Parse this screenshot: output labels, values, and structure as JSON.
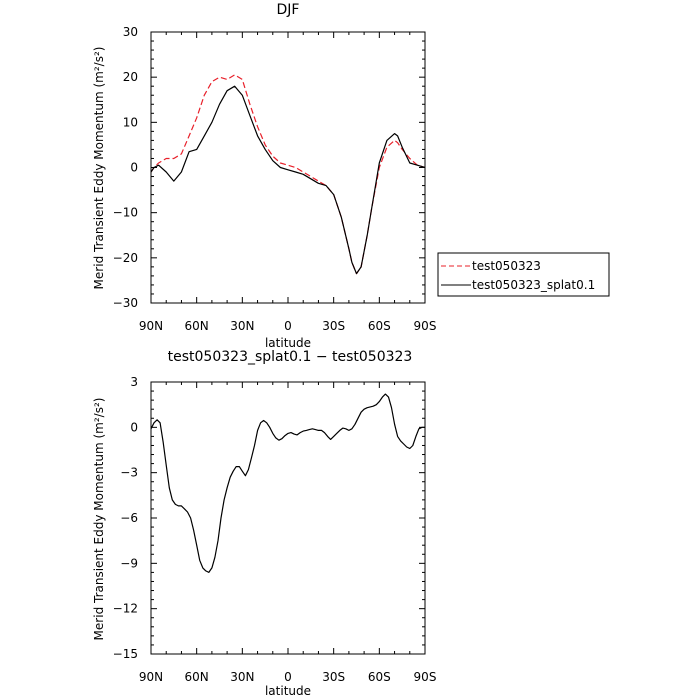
{
  "chart_data": [
    {
      "type": "line",
      "title": "DJF",
      "xlabel": "latitude",
      "ylabel": "Merid Transient Eddy Momentum (m²/s²)",
      "xlim": [
        90,
        -90
      ],
      "ylim": [
        -30,
        30
      ],
      "x_ticks": [
        {
          "value": 90,
          "label": "90N"
        },
        {
          "value": 60,
          "label": "60N"
        },
        {
          "value": 30,
          "label": "30N"
        },
        {
          "value": 0,
          "label": "0"
        },
        {
          "value": -30,
          "label": "30S"
        },
        {
          "value": -60,
          "label": "60S"
        },
        {
          "value": -90,
          "label": "90S"
        }
      ],
      "y_ticks": [
        30,
        20,
        10,
        0,
        -10,
        -20,
        -30
      ],
      "legend": {
        "placement": "right"
      },
      "series": [
        {
          "name": "test050323",
          "color": "#e8202a",
          "style": "dashed",
          "x": [
            90,
            88,
            85,
            80,
            75,
            70,
            65,
            60,
            55,
            50,
            45,
            40,
            35,
            30,
            25,
            20,
            15,
            10,
            5,
            0,
            -5,
            -10,
            -15,
            -20,
            -25,
            -30,
            -35,
            -40,
            -42,
            -45,
            -48,
            -52,
            -55,
            -60,
            -65,
            -70,
            -72,
            -75,
            -80,
            -85,
            -90
          ],
          "y": [
            -1,
            0,
            1,
            2,
            2,
            3,
            7,
            11,
            16,
            19,
            20,
            19.5,
            20.5,
            19.5,
            14,
            9,
            5,
            2.5,
            1,
            0.5,
            0,
            -1,
            -2,
            -3,
            -4,
            -6,
            -11,
            -18,
            -21,
            -23.5,
            -22,
            -15,
            -9,
            0,
            4.5,
            6,
            5.5,
            4,
            2,
            0.5,
            0
          ]
        },
        {
          "name": "test050323_splat0.1",
          "color": "#000000",
          "style": "solid",
          "x": [
            90,
            88,
            85,
            80,
            75,
            70,
            65,
            60,
            55,
            50,
            45,
            40,
            35,
            30,
            25,
            20,
            15,
            10,
            5,
            0,
            -5,
            -10,
            -15,
            -20,
            -25,
            -30,
            -35,
            -40,
            -42,
            -45,
            -48,
            -52,
            -55,
            -60,
            -65,
            -70,
            -72,
            -75,
            -80,
            -85,
            -90
          ],
          "y": [
            -1,
            0,
            0.5,
            -1,
            -3,
            -1,
            3.5,
            4,
            7,
            10,
            14,
            17,
            18,
            16,
            11.5,
            7,
            4,
            1.5,
            0,
            -0.5,
            -1,
            -1.5,
            -2.5,
            -3.5,
            -4,
            -6,
            -11,
            -18,
            -21,
            -23.5,
            -22,
            -15,
            -9,
            1,
            6,
            7.5,
            7,
            4.5,
            1,
            0.5,
            0
          ]
        }
      ]
    },
    {
      "type": "line",
      "title": "test050323_splat0.1 − test050323",
      "xlabel": "latitude",
      "ylabel": "Merid Transient Eddy Momentum (m²/s²)",
      "xlim": [
        90,
        -90
      ],
      "ylim": [
        -15,
        3
      ],
      "x_ticks": [
        {
          "value": 90,
          "label": "90N"
        },
        {
          "value": 60,
          "label": "60N"
        },
        {
          "value": 30,
          "label": "30N"
        },
        {
          "value": 0,
          "label": "0"
        },
        {
          "value": -30,
          "label": "30S"
        },
        {
          "value": -60,
          "label": "60S"
        },
        {
          "value": -90,
          "label": "90S"
        }
      ],
      "y_ticks": [
        3,
        0,
        -3,
        -6,
        -9,
        -12,
        -15
      ],
      "series": [
        {
          "color": "#000000",
          "style": "solid",
          "x": [
            90,
            88,
            86,
            84,
            82,
            80,
            78,
            76,
            74,
            72,
            70,
            68,
            66,
            64,
            62,
            60,
            58,
            56,
            54,
            52,
            50,
            48,
            46,
            44,
            42,
            40,
            38,
            36,
            34,
            32,
            30,
            28,
            26,
            24,
            22,
            20,
            18,
            16,
            14,
            12,
            10,
            8,
            6,
            4,
            2,
            0,
            -2,
            -4,
            -6,
            -8,
            -10,
            -12,
            -14,
            -16,
            -18,
            -20,
            -22,
            -24,
            -26,
            -28,
            -30,
            -32,
            -34,
            -36,
            -38,
            -40,
            -42,
            -44,
            -46,
            -48,
            -50,
            -52,
            -54,
            -56,
            -58,
            -60,
            -62,
            -64,
            -66,
            -68,
            -70,
            -72,
            -74,
            -76,
            -78,
            -80,
            -82,
            -84,
            -86,
            -88,
            -90
          ],
          "y": [
            -0.1,
            0.3,
            0.5,
            0.3,
            -1.0,
            -2.5,
            -4.0,
            -4.8,
            -5.1,
            -5.2,
            -5.2,
            -5.4,
            -5.6,
            -6.0,
            -6.8,
            -7.8,
            -8.8,
            -9.3,
            -9.5,
            -9.6,
            -9.3,
            -8.6,
            -7.5,
            -6.0,
            -4.8,
            -4.0,
            -3.3,
            -2.9,
            -2.6,
            -2.6,
            -2.9,
            -3.2,
            -2.8,
            -2.0,
            -1.2,
            -0.2,
            0.3,
            0.45,
            0.3,
            0.0,
            -0.4,
            -0.7,
            -0.85,
            -0.75,
            -0.55,
            -0.4,
            -0.35,
            -0.45,
            -0.5,
            -0.35,
            -0.25,
            -0.2,
            -0.15,
            -0.1,
            -0.15,
            -0.2,
            -0.2,
            -0.35,
            -0.6,
            -0.8,
            -0.6,
            -0.4,
            -0.2,
            -0.05,
            -0.1,
            -0.2,
            -0.1,
            0.2,
            0.6,
            1.0,
            1.2,
            1.3,
            1.35,
            1.4,
            1.5,
            1.7,
            2.0,
            2.2,
            2.0,
            1.3,
            0.2,
            -0.6,
            -0.9,
            -1.1,
            -1.3,
            -1.4,
            -1.2,
            -0.6,
            -0.1,
            0.0,
            0.0
          ]
        }
      ]
    }
  ]
}
